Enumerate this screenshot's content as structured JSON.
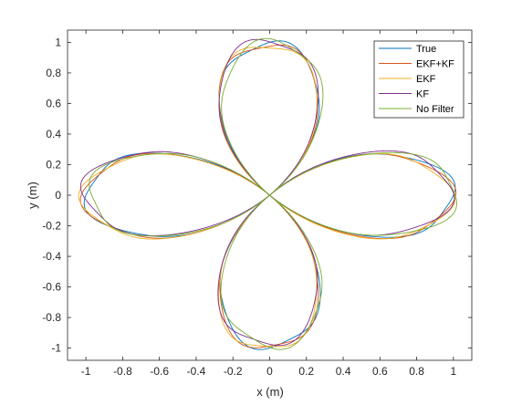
{
  "chart_data": {
    "type": "line",
    "title": "",
    "xlabel": "x (m)",
    "ylabel": "y (m)",
    "xlim": [
      -1.1,
      1.1
    ],
    "ylim": [
      -1.08,
      1.08
    ],
    "xticks": [
      -1,
      -0.8,
      -0.6,
      -0.4,
      -0.2,
      0,
      0.2,
      0.4,
      0.6,
      0.8,
      1
    ],
    "xtick_labels": [
      "-1",
      "-0.8",
      "-0.6",
      "-0.4",
      "-0.2",
      "0",
      "0.2",
      "0.4",
      "0.6",
      "0.8",
      "1"
    ],
    "yticks": [
      -1,
      -0.8,
      -0.6,
      -0.4,
      -0.2,
      0,
      0.2,
      0.4,
      0.6,
      0.8,
      1
    ],
    "ytick_labels": [
      "-1",
      "-0.8",
      "-0.6",
      "-0.4",
      "-0.2",
      "0",
      "0.2",
      "0.4",
      "0.6",
      "0.8",
      "1"
    ],
    "grid": false,
    "legend_position": "top-right",
    "curve": {
      "shape": "four-petal rose r = cos(2*theta) with small wobble",
      "amplitude": 1.0,
      "wobble_amplitude": 0.025,
      "wobble_frequency": 14,
      "t_range": [
        0,
        6.2832
      ],
      "samples": 720
    },
    "series": [
      {
        "name": "True",
        "color": "#0072BD",
        "offset": [
          0.0,
          0.0
        ]
      },
      {
        "name": "EKF+KF",
        "color": "#D95319",
        "offset": [
          -0.008,
          -0.008
        ]
      },
      {
        "name": "EKF",
        "color": "#EDB120",
        "offset": [
          -0.015,
          -0.012
        ]
      },
      {
        "name": "KF",
        "color": "#7E2F8E",
        "offset": [
          -0.012,
          0.018
        ]
      },
      {
        "name": "No Filter",
        "color": "#77AC30",
        "offset": [
          0.018,
          0.008
        ]
      }
    ]
  }
}
